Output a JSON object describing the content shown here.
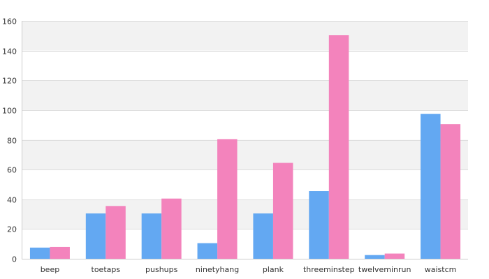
{
  "chart_data": {
    "type": "bar",
    "title": "",
    "xlabel": "",
    "ylabel": "",
    "ylim": [
      0,
      160
    ],
    "yticks": [
      0,
      20,
      40,
      60,
      80,
      100,
      120,
      140,
      160
    ],
    "grid": true,
    "legend": "none",
    "categories": [
      "beep",
      "toetaps",
      "pushups",
      "ninetyhang",
      "plank",
      "threeminstep",
      "twelveminrun",
      "waistcm"
    ],
    "series": [
      {
        "color": "#63a8f2",
        "values": [
          7.5,
          30.5,
          30.5,
          10.5,
          30.5,
          45.5,
          2.5,
          97.5
        ]
      },
      {
        "color": "#f383bc",
        "values": [
          8,
          35.5,
          40.5,
          80.5,
          64.5,
          150.5,
          3.5,
          90.5
        ]
      }
    ],
    "band_colors": [
      "#ffffff",
      "#f2f2f2"
    ]
  }
}
